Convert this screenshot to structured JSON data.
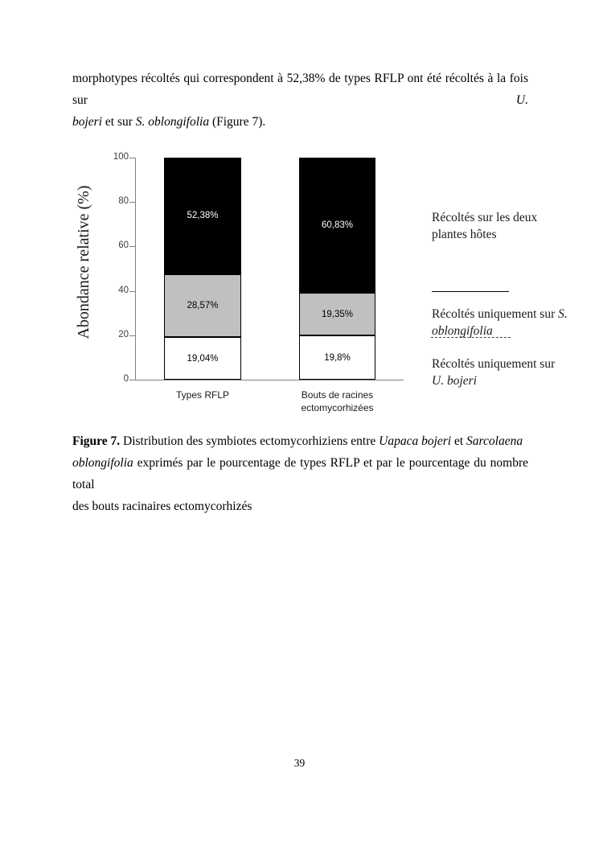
{
  "intro": {
    "l1p1": "morphotypes récoltés qui correspondent à 52,38% de types RFLP ont été récoltés à la fois sur ",
    "l1p2": "U.",
    "l2p1": "bojeri",
    "l2p2": " et sur ",
    "l2p3": "S. oblongifolia",
    "l2p4": " (Figure 7)."
  },
  "chart_data": {
    "type": "bar",
    "stacked": true,
    "title": "",
    "xlabel": "",
    "ylabel": "Abondance relative (%)",
    "ylim": [
      0,
      100
    ],
    "yticks": [
      0,
      20,
      40,
      60,
      80,
      100
    ],
    "grid": false,
    "legend_position": "right",
    "categories": [
      "Types RFLP",
      "Bouts de racines ectomycorhizées"
    ],
    "series": [
      {
        "name": "Récoltés uniquement sur U. bojeri",
        "color": "#ffffff",
        "label_color": "#000000",
        "values": [
          19.04,
          19.8
        ],
        "labels": [
          "19,04%",
          "19,8%"
        ]
      },
      {
        "name": "Récoltés uniquement sur S. oblongifolia",
        "color": "#c0c0c0",
        "label_color": "#000000",
        "values": [
          28.57,
          19.35
        ],
        "labels": [
          "28,57%",
          "19,35%"
        ]
      },
      {
        "name": "Récoltés sur les deux plantes hôtes",
        "color": "#000000",
        "label_color": "#ffffff",
        "values": [
          52.38,
          60.83
        ],
        "labels": [
          "52,38%",
          "60,83%"
        ]
      }
    ]
  },
  "legend": {
    "item1_line1": "Récoltés sur les deux",
    "item1_line2": "plantes hôtes",
    "item2_line1_normal": "Récoltés uniquement sur ",
    "item2_line1_italic": "S.",
    "item2_line2_italic": "oblongifolia",
    "item3_line1": "Récoltés uniquement sur",
    "item3_line2_italic": "U. bojeri"
  },
  "caption": {
    "l1_bold": "Figure 7.",
    "l1p2": " Distribution des symbiotes ectomycorhiziens entre ",
    "l1p3": "Uapaca bojeri",
    "l1p4": " et ",
    "l1p5": "Sarcolaena",
    "l2p1": "oblongifolia",
    "l2p2": " exprimés par le pourcentage de types RFLP et par le pourcentage du nombre total",
    "l3": "des bouts racinaires ectomycorhizés"
  },
  "page_number": "39"
}
